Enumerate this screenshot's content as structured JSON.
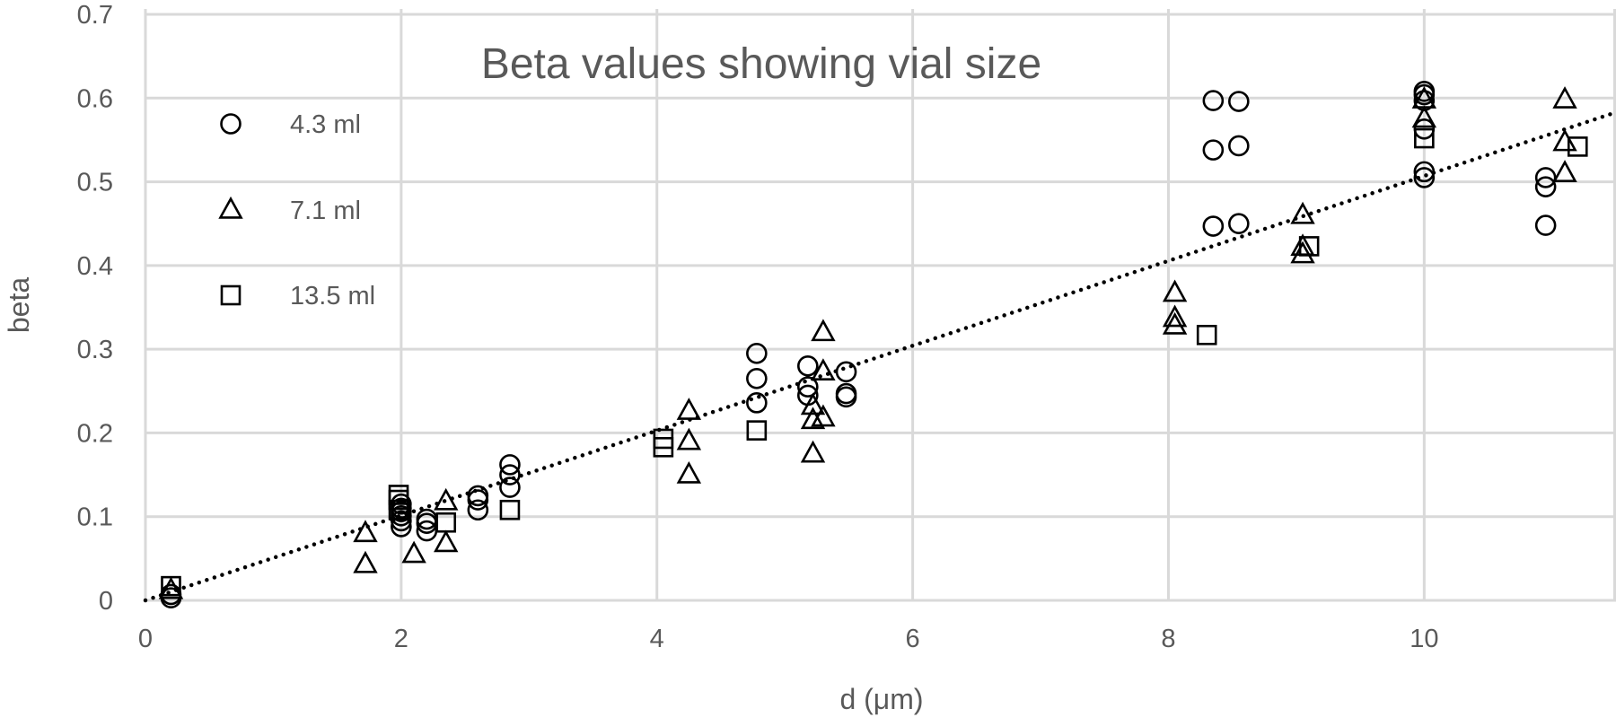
{
  "chart_data": {
    "type": "scatter",
    "title": "Beta values showing vial size",
    "xlabel": "d (μm)",
    "ylabel": "beta",
    "xlim": [
      0,
      11.5
    ],
    "ylim": [
      0,
      0.7
    ],
    "x_ticks": [
      0,
      2,
      4,
      6,
      8,
      10
    ],
    "y_ticks": [
      0,
      0.1,
      0.2,
      0.3,
      0.4,
      0.5,
      0.6,
      0.7
    ],
    "x_tick_labels": [
      "0",
      "2",
      "4",
      "6",
      "8",
      "10"
    ],
    "y_tick_labels": [
      "0",
      "0.1",
      "0.2",
      "0.3",
      "0.4",
      "0.5",
      "0.6",
      "0.7"
    ],
    "grid": true,
    "legend_position": "top-left",
    "series": [
      {
        "name": "4.3 ml",
        "marker": "circle",
        "points": [
          [
            0.2,
            0.003
          ],
          [
            0.2,
            0.007
          ],
          [
            2.0,
            0.088
          ],
          [
            2.0,
            0.095
          ],
          [
            2.0,
            0.101
          ],
          [
            2.0,
            0.106
          ],
          [
            2.0,
            0.11
          ],
          [
            2.0,
            0.115
          ],
          [
            2.2,
            0.083
          ],
          [
            2.2,
            0.092
          ],
          [
            2.2,
            0.097
          ],
          [
            2.6,
            0.108
          ],
          [
            2.6,
            0.12
          ],
          [
            2.6,
            0.125
          ],
          [
            2.85,
            0.135
          ],
          [
            2.85,
            0.15
          ],
          [
            2.85,
            0.162
          ],
          [
            4.78,
            0.236
          ],
          [
            4.78,
            0.265
          ],
          [
            4.78,
            0.295
          ],
          [
            5.18,
            0.245
          ],
          [
            5.18,
            0.255
          ],
          [
            5.18,
            0.28
          ],
          [
            5.48,
            0.243
          ],
          [
            5.48,
            0.247
          ],
          [
            5.48,
            0.273
          ],
          [
            8.35,
            0.447
          ],
          [
            8.35,
            0.538
          ],
          [
            8.35,
            0.597
          ],
          [
            8.55,
            0.45
          ],
          [
            8.55,
            0.543
          ],
          [
            8.55,
            0.596
          ],
          [
            10.0,
            0.505
          ],
          [
            10.0,
            0.512
          ],
          [
            10.0,
            0.563
          ],
          [
            10.0,
            0.597
          ],
          [
            10.0,
            0.604
          ],
          [
            10.0,
            0.608
          ],
          [
            10.95,
            0.448
          ],
          [
            10.95,
            0.494
          ],
          [
            10.95,
            0.505
          ]
        ]
      },
      {
        "name": "7.1 ml",
        "marker": "triangle",
        "points": [
          [
            0.2,
            0.012
          ],
          [
            1.72,
            0.043
          ],
          [
            1.72,
            0.08
          ],
          [
            2.1,
            0.055
          ],
          [
            2.35,
            0.068
          ],
          [
            2.35,
            0.118
          ],
          [
            4.25,
            0.15
          ],
          [
            4.25,
            0.19
          ],
          [
            4.25,
            0.226
          ],
          [
            5.22,
            0.175
          ],
          [
            5.22,
            0.215
          ],
          [
            5.22,
            0.232
          ],
          [
            5.3,
            0.218
          ],
          [
            5.3,
            0.273
          ],
          [
            5.3,
            0.32
          ],
          [
            8.05,
            0.328
          ],
          [
            8.05,
            0.337
          ],
          [
            8.05,
            0.367
          ],
          [
            9.05,
            0.413
          ],
          [
            9.05,
            0.422
          ],
          [
            9.05,
            0.46
          ],
          [
            10.0,
            0.575
          ],
          [
            10.0,
            0.598
          ],
          [
            11.1,
            0.51
          ],
          [
            11.1,
            0.547
          ],
          [
            11.1,
            0.598
          ]
        ]
      },
      {
        "name": "13.5 ml",
        "marker": "square",
        "points": [
          [
            0.2,
            0.017
          ],
          [
            1.98,
            0.108
          ],
          [
            1.98,
            0.12
          ],
          [
            1.98,
            0.126
          ],
          [
            2.35,
            0.093
          ],
          [
            2.85,
            0.108
          ],
          [
            4.05,
            0.183
          ],
          [
            4.05,
            0.193
          ],
          [
            4.78,
            0.203
          ],
          [
            8.3,
            0.317
          ],
          [
            9.1,
            0.423
          ],
          [
            10.0,
            0.552
          ],
          [
            11.2,
            0.542
          ]
        ]
      }
    ],
    "trendline": {
      "style": "dotted",
      "fit": "linear",
      "x": [
        0,
        11.5
      ],
      "y": [
        0,
        0.583
      ]
    }
  }
}
